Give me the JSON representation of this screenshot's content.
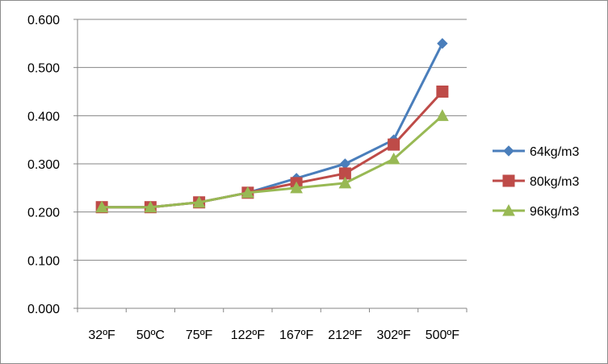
{
  "chart_data": {
    "type": "line",
    "title": "",
    "xlabel": "",
    "ylabel": "",
    "categories": [
      "32ºF",
      "50ºC",
      "75ºF",
      "122ºF",
      "167ºF",
      "212ºF",
      "302ºF",
      "500ºF"
    ],
    "ylim": [
      0,
      0.6
    ],
    "yticks": [
      "0.000",
      "0.100",
      "0.200",
      "0.300",
      "0.400",
      "0.500",
      "0.600"
    ],
    "ytick_values": [
      0,
      0.1,
      0.2,
      0.3,
      0.4,
      0.5,
      0.6
    ],
    "grid": true,
    "legend_position": "right",
    "series": [
      {
        "name": "64kg/m3",
        "marker": "diamond",
        "color": "#4a7ebb",
        "values": [
          0.21,
          0.21,
          0.22,
          0.24,
          0.27,
          0.3,
          0.35,
          0.55
        ]
      },
      {
        "name": "80kg/m3",
        "marker": "square",
        "color": "#be4b48",
        "values": [
          0.21,
          0.21,
          0.22,
          0.24,
          0.26,
          0.28,
          0.34,
          0.45
        ]
      },
      {
        "name": "96kg/m3",
        "marker": "triangle",
        "color": "#98b954",
        "values": [
          0.21,
          0.21,
          0.22,
          0.24,
          0.25,
          0.26,
          0.31,
          0.4
        ]
      }
    ]
  }
}
